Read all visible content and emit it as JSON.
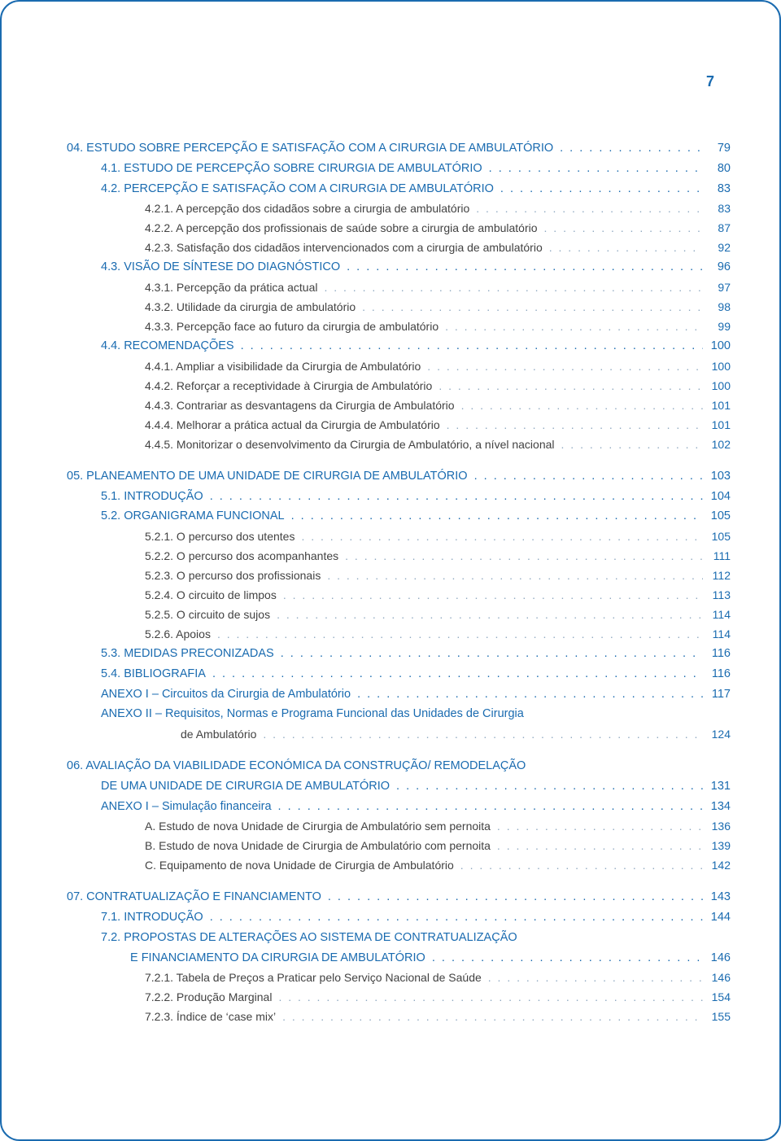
{
  "page_number": "7",
  "colors": {
    "accent": "#1a6bb0",
    "body_text": "#424242",
    "sub_dots": "#8ea8c0",
    "background": "#ffffff",
    "border": "#1a6bb0"
  },
  "typography": {
    "base_font_family": "Verdana, Geneva, sans-serif",
    "base_font_size_pt": 10.5,
    "page_num_font_size_pt": 14
  },
  "toc": [
    {
      "rows": [
        {
          "level": "ch",
          "label": "04. ESTUDO SOBRE PERCEPÇÃO E SATISFAÇÃO COM A CIRURGIA DE AMBULATÓRIO",
          "page": "79"
        },
        {
          "level": "sec",
          "label": "4.1. ESTUDO DE PERCEPÇÃO SOBRE CIRURGIA DE AMBULATÓRIO",
          "page": "80"
        },
        {
          "level": "sec",
          "label": "4.2. PERCEPÇÃO E SATISFAÇÃO COM A CIRURGIA DE AMBULATÓRIO",
          "page": "83"
        },
        {
          "level": "sub",
          "label": "4.2.1. A percepção dos cidadãos sobre a cirurgia de ambulatório",
          "page": "83"
        },
        {
          "level": "sub",
          "label": "4.2.2. A percepção dos profissionais de saúde sobre a cirurgia de ambulatório",
          "page": "87"
        },
        {
          "level": "sub",
          "label": "4.2.3. Satisfação dos cidadãos intervencionados com a cirurgia de ambulatório",
          "page": "92"
        },
        {
          "level": "sec",
          "label": "4.3. VISÃO DE SÍNTESE DO DIAGNÓSTICO",
          "page": "96"
        },
        {
          "level": "sub",
          "label": "4.3.1. Percepção da prática actual",
          "page": "97"
        },
        {
          "level": "sub",
          "label": "4.3.2. Utilidade da cirurgia de ambulatório",
          "page": "98"
        },
        {
          "level": "sub",
          "label": "4.3.3. Percepção face ao futuro da cirurgia de ambulatório",
          "page": "99"
        },
        {
          "level": "sec",
          "label": "4.4. RECOMENDAÇÕES",
          "page": "100"
        },
        {
          "level": "sub",
          "label": "4.4.1. Ampliar a visibilidade da Cirurgia de Ambulatório",
          "page": "100"
        },
        {
          "level": "sub",
          "label": "4.4.2. Reforçar a receptividade à Cirurgia de Ambulatório",
          "page": "100"
        },
        {
          "level": "sub",
          "label": "4.4.3. Contrariar as desvantagens da Cirurgia de Ambulatório",
          "page": "101"
        },
        {
          "level": "sub",
          "label": "4.4.4. Melhorar a prática actual da Cirurgia de Ambulatório",
          "page": "101"
        },
        {
          "level": "sub",
          "label": "4.4.5. Monitorizar o desenvolvimento da Cirurgia de Ambulatório, a nível nacional",
          "page": "102"
        }
      ]
    },
    {
      "rows": [
        {
          "level": "ch",
          "label": "05. PLANEAMENTO DE UMA UNIDADE DE CIRURGIA DE AMBULATÓRIO",
          "page": "103"
        },
        {
          "level": "sec",
          "label": "5.1. INTRODUÇÃO",
          "page": "104"
        },
        {
          "level": "sec",
          "label": "5.2. ORGANIGRAMA FUNCIONAL",
          "page": "105"
        },
        {
          "level": "sub",
          "label": "5.2.1. O percurso dos utentes",
          "page": "105"
        },
        {
          "level": "sub",
          "label": "5.2.2. O percurso dos acompanhantes",
          "page": "111"
        },
        {
          "level": "sub",
          "label": "5.2.3. O percurso dos profissionais",
          "page": "112"
        },
        {
          "level": "sub",
          "label": "5.2.4. O circuito de limpos",
          "page": "113"
        },
        {
          "level": "sub",
          "label": "5.2.5. O circuito de sujos",
          "page": "114"
        },
        {
          "level": "sub",
          "label": "5.2.6. Apoios",
          "page": "114"
        },
        {
          "level": "sec",
          "label": "5.3. MEDIDAS PRECONIZADAS",
          "page": "116"
        },
        {
          "level": "sec",
          "label": "5.4. BIBLIOGRAFIA",
          "page": "116"
        },
        {
          "level": "sec",
          "label": "ANEXO I – Circuitos da Cirurgia de Ambulatório",
          "page": "117"
        },
        {
          "level": "sec",
          "label": "ANEXO II – Requisitos, Normas e Programa Funcional das Unidades de Cirurgia",
          "page": "",
          "nopage": true
        },
        {
          "level": "cont",
          "label": "de Ambulatório",
          "page": "124"
        }
      ]
    },
    {
      "rows": [
        {
          "level": "ch",
          "label": "06. AVALIAÇÃO DA VIABILIDADE ECONÓMICA DA CONSTRUÇÃO/ REMODELAÇÃO",
          "page": "",
          "nopage": true
        },
        {
          "level": "ch_cont",
          "label": "DE UMA UNIDADE DE CIRURGIA DE AMBULATÓRIO",
          "page": "131",
          "indent_ch_cont": true
        },
        {
          "level": "sec",
          "label": "ANEXO I – Simulação financeira",
          "page": "134"
        },
        {
          "level": "sub",
          "label": "A. Estudo de nova Unidade de Cirurgia de Ambulatório sem pernoita",
          "page": "136"
        },
        {
          "level": "sub",
          "label": "B. Estudo de nova Unidade de Cirurgia de Ambulatório com pernoita",
          "page": "139"
        },
        {
          "level": "sub",
          "label": "C. Equipamento de nova Unidade de Cirurgia de Ambulatório",
          "page": "142"
        }
      ]
    },
    {
      "rows": [
        {
          "level": "ch",
          "label": "07. CONTRATUALIZAÇÃO E FINANCIAMENTO",
          "page": "143"
        },
        {
          "level": "sec",
          "label": "7.1. INTRODUÇÃO",
          "page": "144"
        },
        {
          "level": "sec",
          "label": "7.2. PROPOSTAS DE ALTERAÇÕES AO SISTEMA DE CONTRATUALIZAÇÃO",
          "page": "",
          "nopage": true
        },
        {
          "level": "sec_cont",
          "label": "E FINANCIAMENTO DA CIRURGIA DE AMBULATÓRIO",
          "page": "146"
        },
        {
          "level": "sub",
          "label": "7.2.1. Tabela de Preços a Praticar pelo Serviço Nacional de Saúde",
          "page": "146"
        },
        {
          "level": "sub",
          "label": "7.2.2. Produção Marginal",
          "page": "154"
        },
        {
          "level": "sub",
          "label": "7.2.3. Índice de ‘case mix’",
          "page": "155"
        }
      ]
    }
  ]
}
